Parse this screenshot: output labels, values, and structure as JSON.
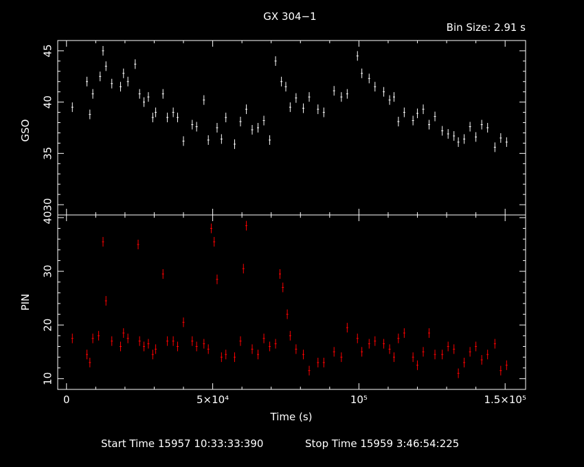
{
  "colors": {
    "background": "#000000",
    "foreground": "#ffffff",
    "gso_series": "#ffffff",
    "pin_series": "#ff0000"
  },
  "header": {
    "title": "GX 304−1",
    "bin_size": "Bin Size:  2.91  s"
  },
  "footer": {
    "start_time": "Start Time 15957 10:33:33:390",
    "stop_time": "Stop Time 15959  3:46:54:225"
  },
  "chart_data": [
    {
      "type": "scatter",
      "panel": "top",
      "ylabel": "GSO",
      "xlabel": "",
      "xlim": [
        -3000,
        157000
      ],
      "ylim": [
        29,
        46
      ],
      "yticks": [
        30,
        35,
        40,
        45
      ],
      "ytick_labels": [
        "30",
        "35",
        "40",
        "45"
      ],
      "series": [
        {
          "color": "#ffffff",
          "x": [
            2000,
            7000,
            8000,
            9000,
            11500,
            12500,
            13500,
            15500,
            18500,
            19500,
            21000,
            23500,
            25000,
            26500,
            28000,
            29500,
            30500,
            33000,
            34500,
            36500,
            38000,
            40000,
            43000,
            44500,
            47000,
            48500,
            51500,
            53000,
            54500,
            57500,
            59500,
            61500,
            63500,
            65500,
            67500,
            69500,
            71500,
            73500,
            75000,
            76500,
            78500,
            81000,
            83000,
            86000,
            88000,
            91500,
            94000,
            96000,
            99500,
            101000,
            103500,
            105500,
            108500,
            110500,
            112000,
            113500,
            115500,
            118500,
            120000,
            122000,
            124000,
            126000,
            128500,
            130500,
            132500,
            134000,
            136000,
            138000,
            140000,
            142000,
            144000,
            146500,
            148500,
            150500
          ],
          "y": [
            39.5,
            42,
            38.8,
            40.8,
            42.5,
            45,
            43.5,
            41.8,
            41.5,
            42.8,
            42,
            43.7,
            40.8,
            40,
            40.5,
            38.5,
            39,
            40.8,
            38.5,
            39,
            38.5,
            36.2,
            37.8,
            37.6,
            40.2,
            36.3,
            37.5,
            36.4,
            38.5,
            35.9,
            38.1,
            39.3,
            37.3,
            37.5,
            38.2,
            36.3,
            44,
            42,
            41.5,
            39.5,
            40.4,
            39.4,
            40.5,
            39.3,
            39,
            41.1,
            40.5,
            40.8,
            44.5,
            42.8,
            42.3,
            41.5,
            41,
            40.2,
            40.5,
            38.1,
            39,
            38.2,
            38.9,
            39.3,
            37.8,
            38.6,
            37.2,
            36.9,
            36.7,
            36.1,
            36.4,
            37.6,
            36.6,
            37.8,
            37.5,
            35.6,
            36.5,
            36.1
          ]
        }
      ]
    },
    {
      "type": "scatter",
      "panel": "bottom",
      "ylabel": "PIN",
      "xlabel": "Time (s)",
      "xlim": [
        -3000,
        157000
      ],
      "ylim": [
        8,
        40.5
      ],
      "yticks": [
        10,
        20,
        30,
        40
      ],
      "ytick_labels": [
        "10",
        "20",
        "30",
        "40"
      ],
      "xticks": [
        0,
        50000,
        100000,
        150000
      ],
      "xtick_labels": [
        "0",
        "5×10⁴",
        "10⁵",
        "1.5×10⁵"
      ],
      "series": [
        {
          "color": "#ff0000",
          "x": [
            2000,
            7000,
            8000,
            9000,
            11000,
            12500,
            13500,
            15500,
            18500,
            19500,
            21000,
            24500,
            25000,
            26500,
            28000,
            29500,
            30500,
            33000,
            34500,
            36500,
            38000,
            40000,
            43000,
            44500,
            47000,
            48500,
            49500,
            50500,
            51500,
            53000,
            54500,
            57500,
            59500,
            60500,
            61500,
            63500,
            65500,
            67500,
            69500,
            71500,
            73000,
            74000,
            75500,
            76500,
            78500,
            81000,
            83000,
            86000,
            88000,
            91500,
            94000,
            96000,
            99500,
            101000,
            103500,
            105500,
            108500,
            110500,
            112000,
            113500,
            115500,
            118500,
            120000,
            122000,
            124000,
            126000,
            128500,
            130500,
            132500,
            134000,
            136000,
            138000,
            140000,
            142000,
            144000,
            146500,
            148500,
            150500
          ],
          "y": [
            17.5,
            14.5,
            13,
            17.5,
            18,
            35.5,
            24.5,
            17,
            16,
            18.5,
            17.5,
            35,
            17,
            16,
            16.5,
            14.5,
            15.5,
            29.5,
            17,
            17,
            16,
            20.5,
            17,
            16,
            16.5,
            15.5,
            38,
            35.5,
            28.5,
            14,
            14.5,
            14,
            17,
            30.5,
            38.5,
            15.5,
            14.5,
            17.5,
            16,
            16.5,
            29.5,
            27,
            22,
            18,
            15.5,
            14.5,
            11.5,
            13,
            13,
            15,
            14,
            19.5,
            17.5,
            15,
            16.5,
            17,
            16.5,
            15.5,
            14,
            17.5,
            18.5,
            14,
            12.5,
            15,
            18.5,
            14.5,
            14.5,
            16,
            15.5,
            11,
            13,
            15,
            16,
            13.5,
            14.5,
            16.5,
            11.5,
            12.5
          ]
        }
      ]
    }
  ]
}
